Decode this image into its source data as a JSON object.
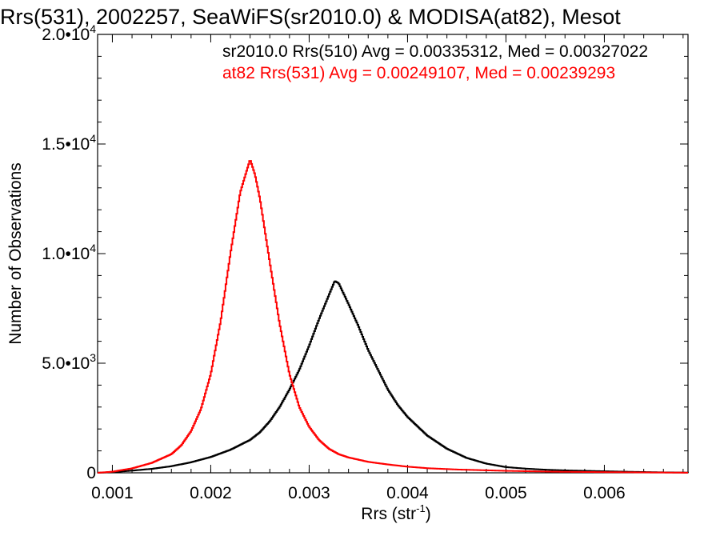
{
  "chart_data": {
    "type": "line",
    "title": "Rrs(531), 2002257, SeaWiFS(sr2010.0) & MODISA(at82), Mesot",
    "xlabel_main": "Rrs (str",
    "xlabel_sup": "-1",
    "xlabel_close": ")",
    "ylabel": "Number of Observations",
    "xlim": [
      0.00085,
      0.00685
    ],
    "ylim": [
      0,
      20000
    ],
    "x_ticks": [
      {
        "value": 0.001,
        "label": "0.001"
      },
      {
        "value": 0.002,
        "label": "0.002"
      },
      {
        "value": 0.003,
        "label": "0.003"
      },
      {
        "value": 0.004,
        "label": "0.004"
      },
      {
        "value": 0.005,
        "label": "0.005"
      },
      {
        "value": 0.006,
        "label": "0.006"
      }
    ],
    "y_ticks": [
      {
        "value": 0,
        "mantissa": "0",
        "exp": ""
      },
      {
        "value": 5000,
        "mantissa": "5.0•10",
        "exp": "3"
      },
      {
        "value": 10000,
        "mantissa": "1.0•10",
        "exp": "4"
      },
      {
        "value": 15000,
        "mantissa": "1.5•10",
        "exp": "4"
      },
      {
        "value": 20000,
        "mantissa": "2.0•10",
        "exp": "4"
      }
    ],
    "annotations": [
      {
        "text": "sr2010.0 Rrs(510) Avg = 0.00335312, Med = 0.00327022",
        "color": "#000000"
      },
      {
        "text": "at82 Rrs(531) Avg = 0.00249107, Med = 0.00239293",
        "color": "#ff0000"
      }
    ],
    "series": [
      {
        "color": "#000000",
        "x": [
          0.00085,
          0.001,
          0.0012,
          0.0014,
          0.0016,
          0.0018,
          0.002,
          0.0022,
          0.0024,
          0.0025,
          0.0026,
          0.0027,
          0.0028,
          0.0029,
          0.003,
          0.0031,
          0.0032,
          0.00326,
          0.0033,
          0.0034,
          0.0035,
          0.0036,
          0.0037,
          0.0038,
          0.0039,
          0.004,
          0.0042,
          0.0044,
          0.0046,
          0.0048,
          0.005,
          0.0052,
          0.0054,
          0.0056,
          0.0058,
          0.006,
          0.0062,
          0.0064,
          0.0066,
          0.00685
        ],
        "values": [
          0,
          30,
          100,
          180,
          300,
          480,
          720,
          1050,
          1500,
          1850,
          2350,
          3000,
          3800,
          4700,
          5800,
          7000,
          8100,
          8750,
          8650,
          7700,
          6700,
          5600,
          4700,
          3800,
          3100,
          2550,
          1700,
          1100,
          680,
          420,
          260,
          190,
          140,
          110,
          90,
          70,
          50,
          35,
          20,
          10
        ]
      },
      {
        "color": "#ff0000",
        "x": [
          0.00085,
          0.001,
          0.0012,
          0.0014,
          0.0016,
          0.0017,
          0.0018,
          0.0019,
          0.002,
          0.0021,
          0.0022,
          0.0023,
          0.0024,
          0.00245,
          0.0025,
          0.0026,
          0.0027,
          0.0028,
          0.0029,
          0.003,
          0.0031,
          0.0032,
          0.0033,
          0.0034,
          0.0036,
          0.0038,
          0.004,
          0.0042,
          0.0045,
          0.005,
          0.0055,
          0.006,
          0.0065,
          0.00685
        ],
        "values": [
          0,
          50,
          200,
          450,
          850,
          1250,
          1900,
          2900,
          4500,
          6900,
          10000,
          12800,
          14300,
          13600,
          12500,
          9600,
          6800,
          4500,
          3000,
          2100,
          1500,
          1100,
          850,
          700,
          500,
          380,
          280,
          210,
          150,
          90,
          50,
          30,
          15,
          5
        ]
      }
    ]
  }
}
